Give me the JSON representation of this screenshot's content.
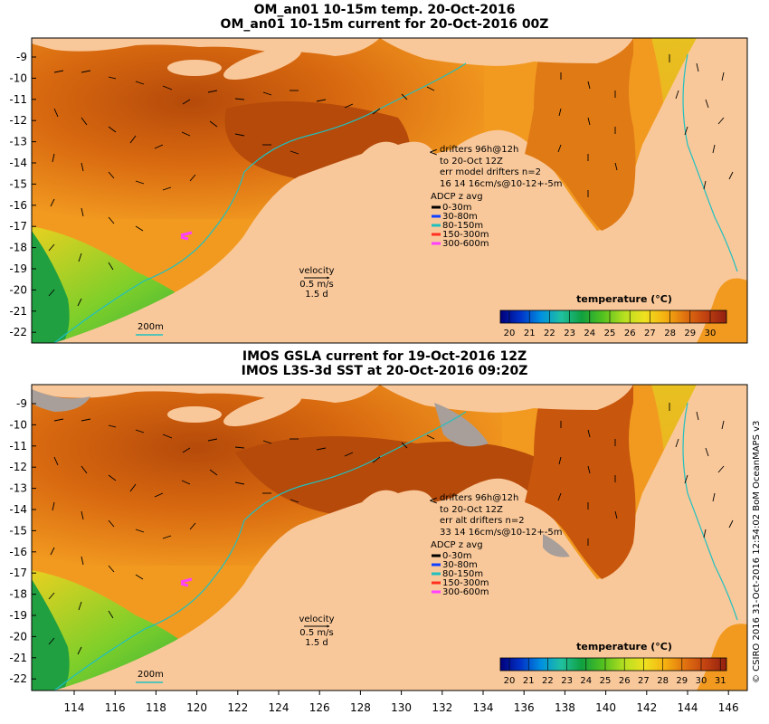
{
  "top_panel": {
    "title_line1": "OM_an01 10-15m temp. 20-Oct-2016",
    "title_line2": "OM_an01 10-15m current for 20-Oct-2016 00Z",
    "drifters_line1": "drifters 96h@12h",
    "drifters_line2": "to 20-Oct 12Z",
    "drifters_line3": "err model drifters n=2",
    "drifters_line4": "16 14 16cm/s@10-12+-5m",
    "adcp_title": "ADCP z avg",
    "adcp_ranges": [
      "0-30m",
      "30-80m",
      "80-150m",
      "150-300m",
      "300-600m"
    ],
    "velocity_label": "velocity",
    "velocity_scale": "0.5 m/s",
    "velocity_time": "1.5 d",
    "isobath_label": "200m",
    "colorbar_title": "temperature (°C)",
    "colorbar_ticks": [
      "20",
      "21",
      "22",
      "23",
      "24",
      "25",
      "26",
      "27",
      "28",
      "29",
      "30"
    ]
  },
  "bottom_panel": {
    "title_line1": "IMOS GSLA current for 19-Oct-2016 12Z",
    "title_line2": "IMOS L3S-3d SST at 20-Oct-2016 09:20Z",
    "drifters_line1": "drifters 96h@12h",
    "drifters_line2": "to 20-Oct 12Z",
    "drifters_line3": "err alt drifters n=2",
    "drifters_line4": "33 14 16cm/s@10-12+-5m",
    "adcp_title": "ADCP z avg",
    "adcp_ranges": [
      "0-30m",
      "30-80m",
      "80-150m",
      "150-300m",
      "300-600m"
    ],
    "velocity_label": "velocity",
    "velocity_scale": "0.5 m/s",
    "velocity_time": "1.5 d",
    "isobath_label": "200m",
    "colorbar_title": "temperature (°C)",
    "colorbar_ticks": [
      "20",
      "21",
      "22",
      "23",
      "24",
      "25",
      "26",
      "27",
      "28",
      "29",
      "30",
      "31"
    ]
  },
  "lat_ticks": [
    "-9",
    "-10",
    "-11",
    "-12",
    "-13",
    "-14",
    "-15",
    "-16",
    "-17",
    "-18",
    "-19",
    "-20",
    "-21",
    "-22"
  ],
  "lon_ticks": [
    "114",
    "116",
    "118",
    "120",
    "122",
    "124",
    "126",
    "128",
    "130",
    "132",
    "134",
    "136",
    "138",
    "140",
    "142",
    "144",
    "146"
  ],
  "credit": "© CSIRO 2016  31-Oct-2016 12:54:02 BoM OceanMAPS v3",
  "colors": {
    "land": "#f9c89a",
    "ocean_warm": "#d96a10",
    "ocean_hot": "#b54a0a",
    "ocean_mid": "#f29a20",
    "ocean_cool": "#3fbf3f",
    "isobath": "#20c0c0",
    "cloud_gray": "#a89f9a"
  },
  "adcp_colors": [
    "#000000",
    "#1040ff",
    "#20c0c0",
    "#ff3020",
    "#ff40ff"
  ],
  "colorbar_colors": [
    "#00007a",
    "#0033c8",
    "#0090e0",
    "#20c0a0",
    "#10a040",
    "#50c020",
    "#b8e020",
    "#f0e020",
    "#f5b010",
    "#e07010",
    "#c04010",
    "#902010"
  ]
}
